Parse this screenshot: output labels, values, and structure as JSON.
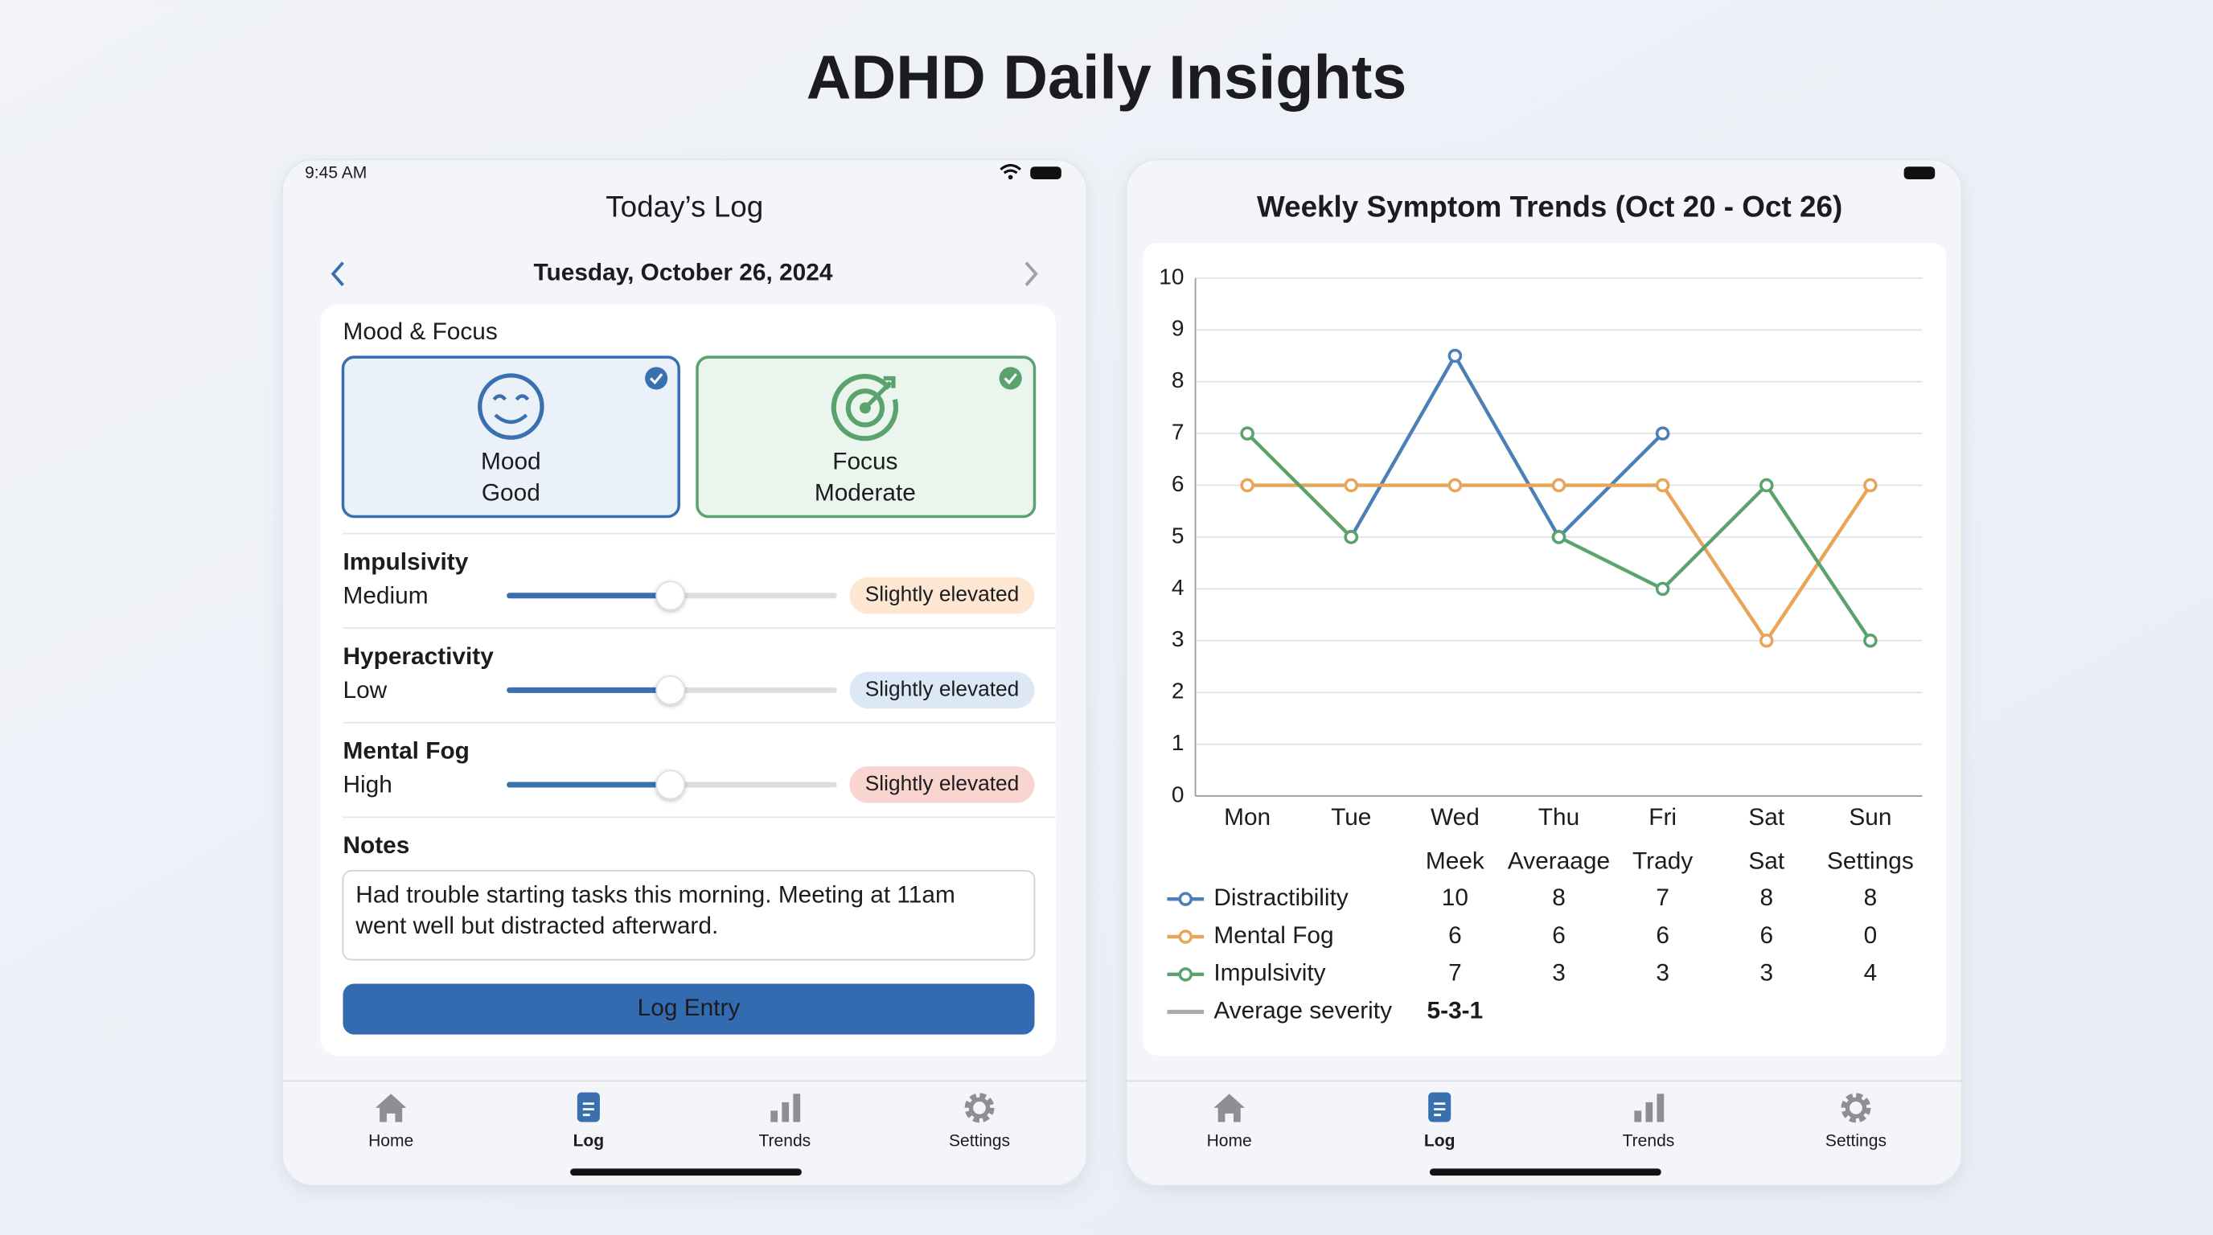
{
  "title": "ADHD Daily Insights",
  "log_screen": {
    "status_time": "9:45 AM",
    "header": "Today’s Log",
    "date": "Tuesday, October 26, 2024",
    "section_title": "Mood & Focus",
    "cards": [
      {
        "label": "Mood",
        "value": "Good"
      },
      {
        "label": "Focus",
        "value": "Moderate"
      }
    ],
    "symptoms": [
      {
        "name": "Impulsivity",
        "level": "Medium",
        "badge": "Slightly elevated"
      },
      {
        "name": "Hyperactivity",
        "level": "Low",
        "badge": "Slightly elevated"
      },
      {
        "name": "Mental Fog",
        "level": "High",
        "badge": "Slightly elevated"
      }
    ],
    "notes_label": "Notes",
    "notes_lines": [
      "Had trouble starting tasks this morning. Meeting at 11am",
      "went well but distracted afterward."
    ],
    "button": "Log Entry"
  },
  "tabs": [
    "Home",
    "Log",
    "Trends",
    "Settings"
  ],
  "chart_data": {
    "type": "line",
    "title": "Weekly Symptom Trends (Oct 20 - Oct 26)",
    "categories": [
      "Mon",
      "Tue",
      "Wed",
      "Thu",
      "Fri",
      "Sat",
      "Sun"
    ],
    "series": [
      {
        "name": "Distractibility",
        "color": "#4a7fb8",
        "values": [
          null,
          5,
          8.5,
          5,
          7,
          null,
          null
        ]
      },
      {
        "name": "Mental Fog",
        "color": "#e8a55a",
        "values": [
          6,
          6,
          6,
          6,
          6,
          3,
          6
        ]
      },
      {
        "name": "Impulsivity",
        "color": "#5aa36e",
        "values": [
          7,
          5,
          null,
          5,
          4,
          6,
          3
        ]
      }
    ],
    "ylim": [
      0,
      10
    ],
    "yticks": [
      0,
      1,
      2,
      3,
      4,
      5,
      6,
      7,
      8,
      9,
      10
    ],
    "grid": true
  },
  "summary_table": {
    "columns": [
      "Meek",
      "Averaage",
      "Trady",
      "Sat",
      "Settings"
    ],
    "rows": [
      [
        10,
        8,
        7,
        8,
        8
      ],
      [
        6,
        6,
        6,
        6,
        0
      ],
      [
        7,
        3,
        3,
        3,
        4
      ]
    ],
    "average_label": "Average severity",
    "average_color": "#aaaaaa",
    "average_value": "5-3-1"
  }
}
